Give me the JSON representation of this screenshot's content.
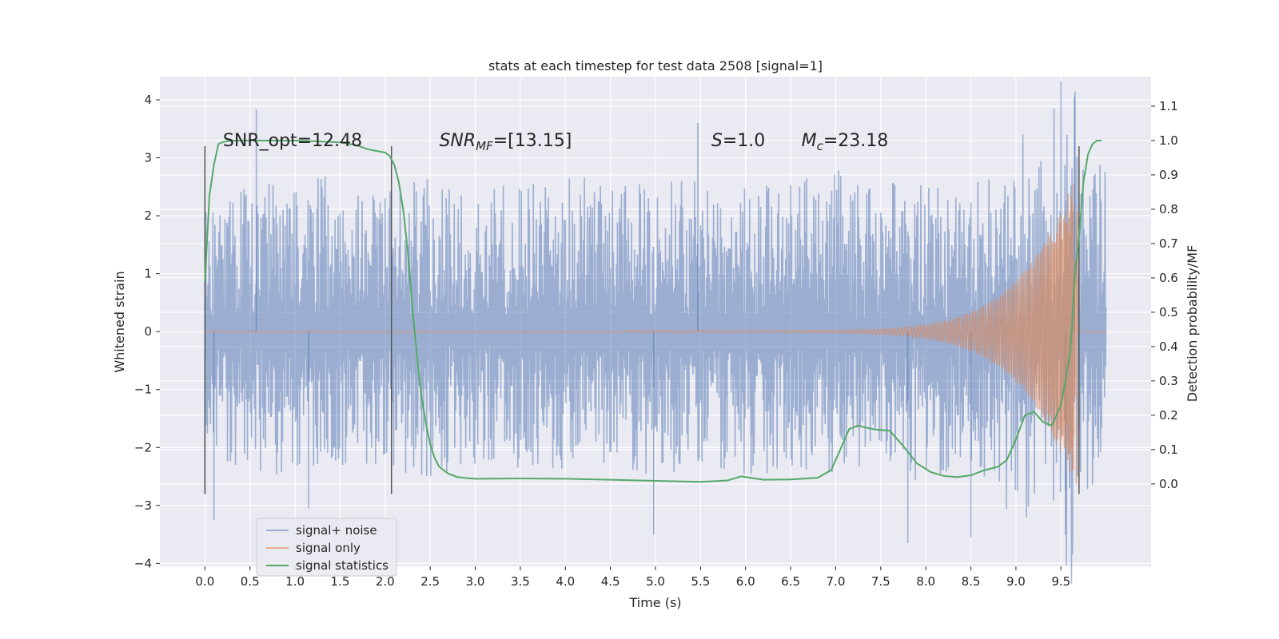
{
  "chart_data": {
    "type": "line",
    "title": "stats at each timestep for test data 2508 [signal=1]",
    "xlabel": "Time (s)",
    "ylabel": "Whitened strain",
    "ylabel_right": "Detection probability/MF",
    "xlim": [
      -0.5,
      10.5
    ],
    "ylim": [
      -4.05,
      4.4
    ],
    "ylim_right": [
      -0.24,
      1.186
    ],
    "x_ticks": [
      0.0,
      0.5,
      1.0,
      1.5,
      2.0,
      2.5,
      3.0,
      3.5,
      4.0,
      4.5,
      5.0,
      5.5,
      6.0,
      6.5,
      7.0,
      7.5,
      8.0,
      8.5,
      9.0,
      9.5
    ],
    "x_tick_labels": [
      "0.0",
      "0.5",
      "1.0",
      "1.5",
      "2.0",
      "2.5",
      "3.0",
      "3.5",
      "4.0",
      "4.5",
      "5.0",
      "5.5",
      "6.0",
      "6.5",
      "7.0",
      "7.5",
      "8.0",
      "8.5",
      "9.0",
      "9.5"
    ],
    "y_ticks": [
      -4,
      -3,
      -2,
      -1,
      0,
      1,
      2,
      3,
      4
    ],
    "y_tick_labels": [
      "−4",
      "−3",
      "−2",
      "−1",
      "0",
      "1",
      "2",
      "3",
      "4"
    ],
    "y_right_ticks": [
      0.0,
      0.1,
      0.2,
      0.3,
      0.4,
      0.5,
      0.6,
      0.7,
      0.8,
      0.9,
      1.0,
      1.1
    ],
    "y_right_tick_labels": [
      "0.0",
      "0.1",
      "0.2",
      "0.3",
      "0.4",
      "0.5",
      "0.6",
      "0.7",
      "0.8",
      "0.9",
      "1.0",
      "1.1"
    ],
    "grid": true,
    "legend_position": "lower-left",
    "annotations": [
      {
        "text": "SNR_opt=12.48",
        "x": 0.2,
        "y": 3.2
      },
      {
        "text": "SNR",
        "sub": "MF",
        "rest": "=[13.15]",
        "italic": true,
        "x": 2.6,
        "y": 3.2
      },
      {
        "text": "S",
        "rest": "=1.0",
        "italic": true,
        "x": 5.62,
        "y": 3.2
      },
      {
        "text": "M",
        "sub": "c",
        "rest": "=23.18",
        "italic": true,
        "x": 6.62,
        "y": 3.2
      }
    ],
    "vlines": [
      {
        "x": 0.0,
        "y0": -2.8,
        "y1": 3.2
      },
      {
        "x": 2.07,
        "y0": -2.8,
        "y1": 3.2
      },
      {
        "x": 9.7,
        "y0": -2.8,
        "y1": 3.2
      }
    ],
    "series": [
      {
        "name": "signal+ noise",
        "color": "#4c72b0",
        "opacity": 0.5,
        "x_start": 0.0,
        "x_end": 10.0,
        "envelope_pos": [
          2.5,
          2.7,
          2.6,
          2.9,
          2.5,
          2.8,
          2.6,
          2.7,
          2.9,
          2.6,
          2.7,
          2.8,
          2.6,
          2.7,
          2.9,
          2.8,
          2.7,
          2.6,
          2.8,
          2.9,
          3.1
        ],
        "envelope_neg": [
          -2.3,
          -2.5,
          -2.6,
          -2.4,
          -2.5,
          -2.6,
          -2.4,
          -2.5,
          -2.5,
          -2.4,
          -2.6,
          -2.5,
          -2.6,
          -2.5,
          -2.6,
          -2.8,
          -2.7,
          -2.6,
          -2.8,
          -2.9,
          -2.8
        ],
        "peaks": [
          [
            0.57,
            3.83
          ],
          [
            5.47,
            3.6
          ],
          [
            9.65,
            4.05
          ],
          [
            -0.0,
            -2.8
          ],
          [
            0.1,
            -3.25
          ],
          [
            4.98,
            -3.5
          ],
          [
            7.8,
            -3.65
          ],
          [
            8.5,
            -3.55
          ],
          [
            9.55,
            -3.5
          ],
          [
            1.15,
            -3.05
          ]
        ]
      },
      {
        "name": "signal only",
        "color": "#dd8452",
        "opacity": 0.6,
        "chirp_start": 5.0,
        "chirp_end": 9.68,
        "amp_start": 0.02,
        "amp_end": 2.8
      },
      {
        "name": "signal statistics",
        "color": "#55a868",
        "axis": "right",
        "x": [
          0.0,
          0.05,
          0.1,
          0.15,
          0.2,
          0.3,
          0.5,
          1.0,
          1.5,
          1.7,
          1.8,
          1.9,
          2.0,
          2.05,
          2.1,
          2.15,
          2.2,
          2.25,
          2.3,
          2.35,
          2.4,
          2.45,
          2.5,
          2.55,
          2.6,
          2.7,
          2.8,
          2.9,
          3.0,
          3.5,
          4.0,
          4.5,
          5.0,
          5.5,
          5.8,
          5.95,
          6.05,
          6.2,
          6.5,
          6.8,
          6.95,
          7.05,
          7.15,
          7.25,
          7.35,
          7.45,
          7.6,
          7.75,
          7.9,
          8.05,
          8.2,
          8.35,
          8.5,
          8.65,
          8.8,
          8.9,
          9.0,
          9.1,
          9.2,
          9.3,
          9.4,
          9.5,
          9.55,
          9.6,
          9.62,
          9.65,
          9.7,
          9.75,
          9.8,
          9.85,
          9.9,
          9.95
        ],
        "y": [
          0.59,
          0.84,
          0.93,
          0.99,
          0.996,
          1.0,
          1.0,
          1.0,
          0.995,
          0.985,
          0.975,
          0.97,
          0.965,
          0.955,
          0.93,
          0.88,
          0.8,
          0.68,
          0.52,
          0.38,
          0.26,
          0.18,
          0.115,
          0.075,
          0.05,
          0.03,
          0.02,
          0.017,
          0.015,
          0.016,
          0.015,
          0.012,
          0.009,
          0.006,
          0.01,
          0.022,
          0.018,
          0.012,
          0.013,
          0.018,
          0.04,
          0.1,
          0.16,
          0.17,
          0.163,
          0.158,
          0.155,
          0.11,
          0.06,
          0.035,
          0.023,
          0.02,
          0.025,
          0.04,
          0.05,
          0.07,
          0.13,
          0.2,
          0.21,
          0.18,
          0.17,
          0.23,
          0.3,
          0.38,
          0.45,
          0.6,
          0.72,
          0.88,
          0.96,
          0.99,
          1.0,
          1.0
        ]
      }
    ]
  }
}
